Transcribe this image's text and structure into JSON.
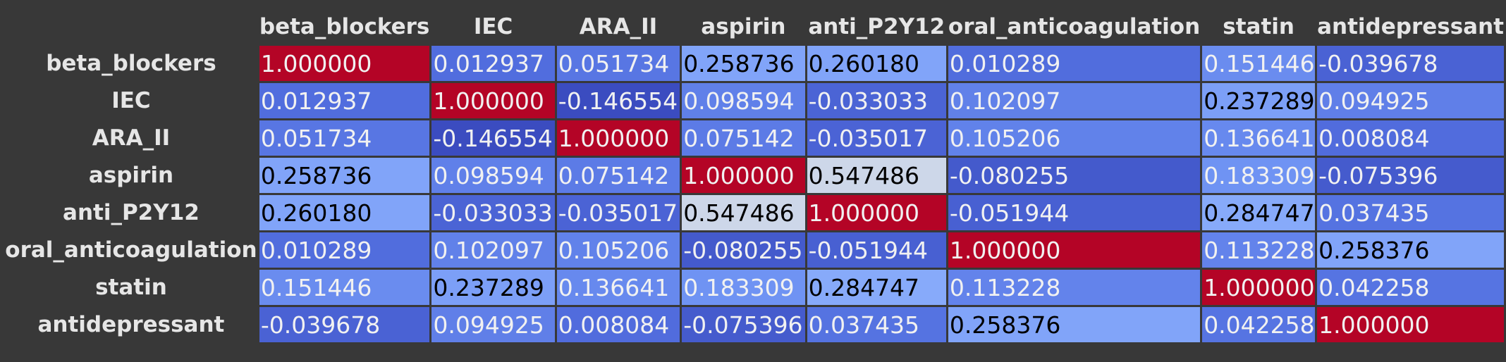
{
  "chart_data": {
    "type": "heatmap",
    "title": "",
    "colormap": "coolwarm",
    "vmin": -0.146554,
    "vmax": 1.0,
    "columns": [
      "beta_blockers",
      "IEC",
      "ARA_II",
      "aspirin",
      "anti_P2Y12",
      "oral_anticoagulation",
      "statin",
      "antidepressant"
    ],
    "rows": [
      "beta_blockers",
      "IEC",
      "ARA_II",
      "aspirin",
      "anti_P2Y12",
      "oral_anticoagulation",
      "statin",
      "antidepressant"
    ],
    "values": [
      [
        "1.000000",
        "0.012937",
        "0.051734",
        "0.258736",
        "0.260180",
        "0.010289",
        "0.151446",
        "-0.039678"
      ],
      [
        "0.012937",
        "1.000000",
        "-0.146554",
        "0.098594",
        "-0.033033",
        "0.102097",
        "0.237289",
        "0.094925"
      ],
      [
        "0.051734",
        "-0.146554",
        "1.000000",
        "0.075142",
        "-0.035017",
        "0.105206",
        "0.136641",
        "0.008084"
      ],
      [
        "0.258736",
        "0.098594",
        "0.075142",
        "1.000000",
        "0.547486",
        "-0.080255",
        "0.183309",
        "-0.075396"
      ],
      [
        "0.260180",
        "-0.033033",
        "-0.035017",
        "0.547486",
        "1.000000",
        "-0.051944",
        "0.284747",
        "0.037435"
      ],
      [
        "0.010289",
        "0.102097",
        "0.105206",
        "-0.080255",
        "-0.051944",
        "1.000000",
        "0.113228",
        "0.258376"
      ],
      [
        "0.151446",
        "0.237289",
        "0.136641",
        "0.183309",
        "0.284747",
        "0.113228",
        "1.000000",
        "0.042258"
      ],
      [
        "-0.039678",
        "0.094925",
        "0.008084",
        "-0.075396",
        "0.037435",
        "0.258376",
        "0.042258",
        "1.000000"
      ]
    ]
  }
}
